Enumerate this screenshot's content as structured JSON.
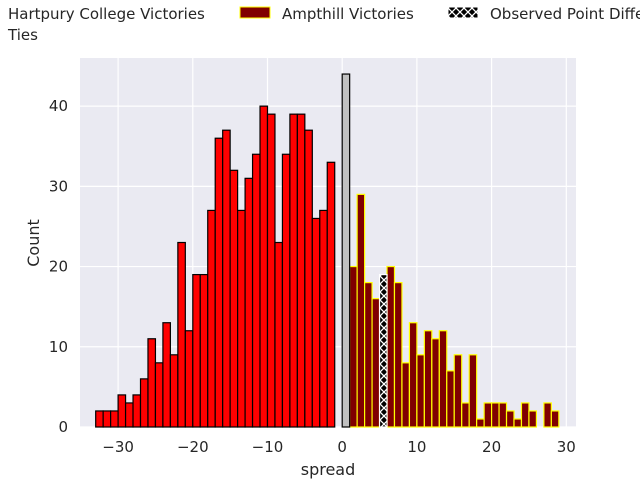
{
  "chart_data": {
    "type": "bar",
    "xlabel": "spread",
    "ylabel": "Count",
    "xlim": [
      -35.1,
      31.3
    ],
    "ylim": [
      0,
      46
    ],
    "x_ticks": [
      -30,
      -20,
      -10,
      0,
      10,
      20,
      30
    ],
    "x_tick_labels": [
      "−30",
      "−20",
      "−10",
      "0",
      "10",
      "20",
      "30"
    ],
    "y_ticks": [
      0,
      10,
      20,
      30,
      40
    ],
    "y_tick_labels": [
      "0",
      "10",
      "20",
      "30",
      "40"
    ],
    "grid": true,
    "background": "#eaeaf2",
    "legend_position": "top",
    "bin_width": 1,
    "series": [
      {
        "name": "Hartpury College Victories",
        "fill": "#ff0000",
        "edge": "#000000",
        "bins": [
          {
            "x": -33,
            "count": 2
          },
          {
            "x": -32,
            "count": 2
          },
          {
            "x": -31,
            "count": 2
          },
          {
            "x": -30,
            "count": 4
          },
          {
            "x": -29,
            "count": 3
          },
          {
            "x": -28,
            "count": 4
          },
          {
            "x": -27,
            "count": 6
          },
          {
            "x": -26,
            "count": 11
          },
          {
            "x": -25,
            "count": 8
          },
          {
            "x": -24,
            "count": 13
          },
          {
            "x": -23,
            "count": 9
          },
          {
            "x": -22,
            "count": 23
          },
          {
            "x": -21,
            "count": 12
          },
          {
            "x": -20,
            "count": 19
          },
          {
            "x": -19,
            "count": 19
          },
          {
            "x": -18,
            "count": 27
          },
          {
            "x": -17,
            "count": 36
          },
          {
            "x": -16,
            "count": 37
          },
          {
            "x": -15,
            "count": 32
          },
          {
            "x": -14,
            "count": 27
          },
          {
            "x": -13,
            "count": 31
          },
          {
            "x": -12,
            "count": 34
          },
          {
            "x": -11,
            "count": 40
          },
          {
            "x": -10,
            "count": 39
          },
          {
            "x": -9,
            "count": 23
          },
          {
            "x": -8,
            "count": 34
          },
          {
            "x": -7,
            "count": 39
          },
          {
            "x": -6,
            "count": 39
          },
          {
            "x": -5,
            "count": 37
          },
          {
            "x": -4,
            "count": 26
          },
          {
            "x": -3,
            "count": 27
          },
          {
            "x": -2,
            "count": 33
          }
        ]
      },
      {
        "name": "Ampthill Victories",
        "fill": "#800000",
        "edge": "#ffff00",
        "bins": [
          {
            "x": 1,
            "count": 20
          },
          {
            "x": 2,
            "count": 29
          },
          {
            "x": 3,
            "count": 18
          },
          {
            "x": 4,
            "count": 16
          },
          {
            "x": 6,
            "count": 20
          },
          {
            "x": 7,
            "count": 18
          },
          {
            "x": 8,
            "count": 8
          },
          {
            "x": 9,
            "count": 13
          },
          {
            "x": 10,
            "count": 9
          },
          {
            "x": 11,
            "count": 12
          },
          {
            "x": 12,
            "count": 11
          },
          {
            "x": 13,
            "count": 12
          },
          {
            "x": 14,
            "count": 7
          },
          {
            "x": 15,
            "count": 9
          },
          {
            "x": 16,
            "count": 3
          },
          {
            "x": 17,
            "count": 9
          },
          {
            "x": 18,
            "count": 1
          },
          {
            "x": 19,
            "count": 3
          },
          {
            "x": 20,
            "count": 3
          },
          {
            "x": 21,
            "count": 3
          },
          {
            "x": 22,
            "count": 2
          },
          {
            "x": 23,
            "count": 1
          },
          {
            "x": 24,
            "count": 3
          },
          {
            "x": 25,
            "count": 2
          },
          {
            "x": 27,
            "count": 3
          },
          {
            "x": 28,
            "count": 2
          }
        ]
      },
      {
        "name": "Observed Point Differential",
        "fill": "#000000",
        "edge": "#ffffff",
        "pattern": "cross-hatch",
        "bins": [
          {
            "x": 5,
            "count": 19
          }
        ]
      },
      {
        "name": "Ties",
        "fill": "#c0c0c0",
        "edge": "#000000",
        "bins": [
          {
            "x": 0,
            "count": 44
          }
        ]
      }
    ]
  }
}
